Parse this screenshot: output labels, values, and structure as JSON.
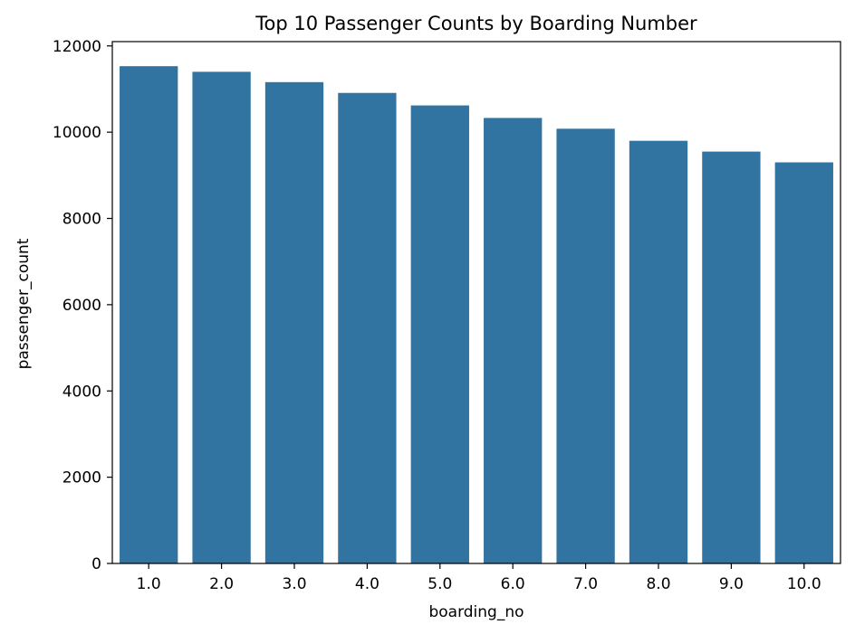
{
  "chart_data": {
    "type": "bar",
    "title": "Top 10 Passenger Counts by Boarding Number",
    "xlabel": "boarding_no",
    "ylabel": "passenger_count",
    "categories": [
      "1.0",
      "2.0",
      "3.0",
      "4.0",
      "5.0",
      "6.0",
      "7.0",
      "8.0",
      "9.0",
      "10.0"
    ],
    "values": [
      11530,
      11400,
      11160,
      10910,
      10620,
      10330,
      10080,
      9800,
      9550,
      9300
    ],
    "ylim": [
      0,
      12100
    ],
    "yticks": [
      0,
      2000,
      4000,
      6000,
      8000,
      10000,
      12000
    ],
    "grid": false,
    "legend": "none",
    "colors": {
      "bar": "#3274a1",
      "axis": "#000000",
      "background": "#ffffff"
    }
  }
}
